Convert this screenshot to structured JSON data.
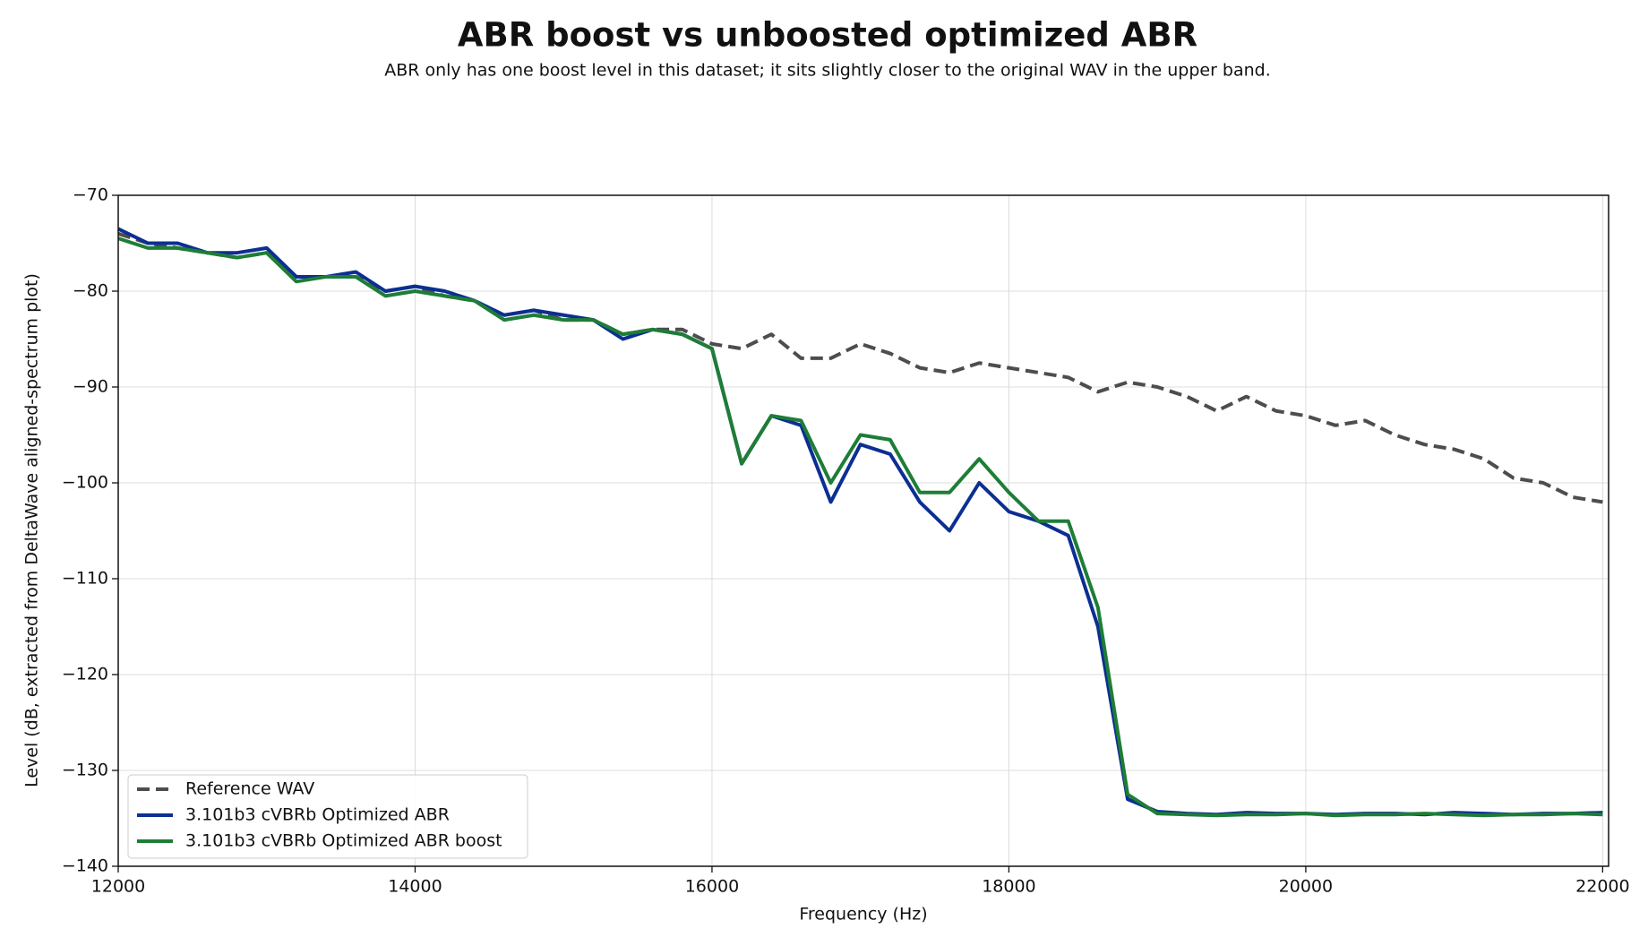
{
  "chart_data": {
    "type": "line",
    "title": "ABR boost vs unboosted optimized ABR",
    "subtitle": "ABR only has one boost level in this dataset; it sits slightly closer to the original WAV in the upper band.",
    "x_label": "Frequency (Hz)",
    "y_label": "Level (dB, extracted from DeltaWave aligned-spectrum plot)",
    "x": [
      12000,
      12200,
      12400,
      12600,
      12800,
      13000,
      13200,
      13400,
      13600,
      13800,
      14000,
      14200,
      14400,
      14600,
      14800,
      15000,
      15200,
      15400,
      15600,
      15800,
      16000,
      16200,
      16400,
      16600,
      16800,
      17000,
      17200,
      17400,
      17600,
      17800,
      18000,
      18200,
      18400,
      18600,
      18800,
      19000,
      19200,
      19400,
      19600,
      19800,
      20000,
      20200,
      20400,
      20600,
      20800,
      21000,
      21200,
      21400,
      21600,
      21800,
      22000
    ],
    "series": [
      {
        "name": "Reference WAV",
        "color": "#4d4d4d",
        "dashed": true,
        "values": [
          -74,
          -75,
          -75.5,
          -76,
          -76.5,
          -76,
          -78.5,
          -78.5,
          -78.5,
          -80,
          -79.5,
          -80.5,
          -81,
          -82.5,
          -82,
          -83,
          -83,
          -84.5,
          -84,
          -84,
          -85.5,
          -86,
          -84.5,
          -87,
          -87,
          -85.5,
          -86.5,
          -88,
          -88.5,
          -87.5,
          -88,
          -88.5,
          -89,
          -90.5,
          -89.5,
          -90,
          -91,
          -92.5,
          -91,
          -92.5,
          -93,
          -94,
          -93.5,
          -95,
          -96,
          -96.5,
          -97.5,
          -99.5,
          -100,
          -101.5,
          -102
        ]
      },
      {
        "name": "3.101b3 cVBRb Optimized ABR",
        "color": "#0b2f92",
        "dashed": false,
        "values": [
          -73.5,
          -75,
          -75,
          -76,
          -76,
          -75.5,
          -78.5,
          -78.5,
          -78,
          -80,
          -79.5,
          -80,
          -81,
          -82.5,
          -82,
          -82.5,
          -83,
          -85,
          -84,
          -84.5,
          -86,
          -98,
          -93,
          -94,
          -102,
          -96,
          -97,
          -102,
          -105,
          -100,
          -103,
          -104,
          -105.5,
          -115,
          -133,
          -134.3,
          -134.5,
          -134.6,
          -134.4,
          -134.5,
          -134.5,
          -134.6,
          -134.5,
          -134.5,
          -134.6,
          -134.4,
          -134.5,
          -134.6,
          -134.5,
          -134.5,
          -134.4
        ]
      },
      {
        "name": "3.101b3 cVBRb Optimized ABR boost",
        "color": "#1e7d36",
        "dashed": false,
        "values": [
          -74.5,
          -75.5,
          -75.5,
          -76,
          -76.5,
          -76,
          -79,
          -78.5,
          -78.5,
          -80.5,
          -80,
          -80.5,
          -81,
          -83,
          -82.5,
          -83,
          -83,
          -84.5,
          -84,
          -84.5,
          -86,
          -98,
          -93,
          -93.5,
          -100,
          -95,
          -95.5,
          -101,
          -101,
          -97.5,
          -101,
          -104,
          -104,
          -113,
          -132.5,
          -134.5,
          -134.6,
          -134.7,
          -134.6,
          -134.6,
          -134.5,
          -134.7,
          -134.6,
          -134.6,
          -134.5,
          -134.6,
          -134.7,
          -134.6,
          -134.6,
          -134.5,
          -134.6
        ]
      }
    ],
    "xlim": [
      12000,
      22040
    ],
    "ylim": [
      -140,
      -70
    ],
    "xticks": [
      12000,
      14000,
      16000,
      18000,
      20000,
      22000
    ],
    "yticks": [
      {
        "value": -140,
        "label": "−140"
      },
      {
        "value": -130,
        "label": "−130"
      },
      {
        "value": -120,
        "label": "−120"
      },
      {
        "value": -110,
        "label": "−110"
      },
      {
        "value": -100,
        "label": "−100"
      },
      {
        "value": -90,
        "label": "−90"
      },
      {
        "value": -80,
        "label": "−80"
      },
      {
        "value": -70,
        "label": "−70"
      }
    ],
    "grid": true,
    "legend": "lower left"
  }
}
